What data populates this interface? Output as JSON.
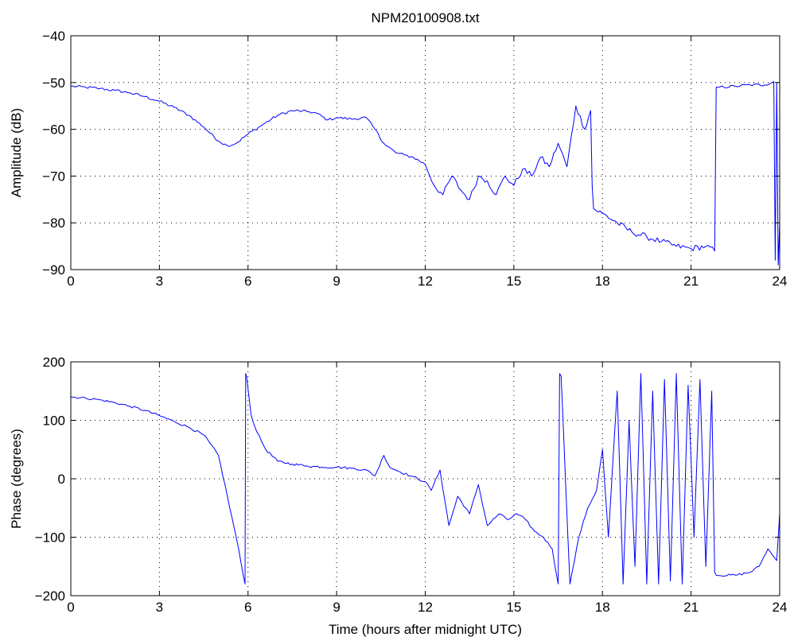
{
  "chart_data": [
    {
      "type": "line",
      "title": "NPM20100908.txt",
      "xlabel": "",
      "ylabel": "Amplitude (dB)",
      "xlim": [
        0,
        24
      ],
      "ylim": [
        -90,
        -40
      ],
      "xticks": [
        0,
        3,
        6,
        9,
        12,
        15,
        18,
        21,
        24
      ],
      "yticks": [
        -90,
        -80,
        -70,
        -60,
        -50,
        -40
      ],
      "grid": true,
      "color": "#0000ff",
      "series": [
        {
          "x": [
            0,
            0.5,
            1,
            1.5,
            2,
            2.5,
            3,
            3.5,
            4,
            4.5,
            5,
            5.3,
            5.6,
            6,
            6.5,
            7,
            7.5,
            8,
            8.3,
            8.7,
            9,
            9.5,
            10,
            10.3,
            10.6,
            11,
            11.3,
            11.6,
            12,
            12.3,
            12.6,
            12.9,
            13.2,
            13.5,
            13.8,
            14.1,
            14.4,
            14.7,
            15,
            15.3,
            15.6,
            15.9,
            16.2,
            16.5,
            16.8,
            17.1,
            17.4,
            17.6,
            17.65,
            17.7,
            18,
            18.5,
            19,
            19.5,
            20,
            20.5,
            21,
            21.5,
            21.8,
            21.85,
            21.9,
            22.5,
            23,
            23.5,
            23.8,
            23.85,
            23.9,
            23.95,
            24
          ],
          "y": [
            -50.8,
            -51,
            -51.3,
            -51.7,
            -52.2,
            -53,
            -54,
            -55.3,
            -57,
            -59.5,
            -62.5,
            -63.5,
            -63,
            -61,
            -59,
            -57,
            -56,
            -56.2,
            -56.5,
            -58,
            -57.5,
            -57.8,
            -57.5,
            -60,
            -63,
            -65,
            -65.5,
            -66,
            -67.5,
            -72,
            -74,
            -70,
            -73,
            -75,
            -70,
            -71,
            -74,
            -70,
            -72,
            -68.5,
            -70,
            -66,
            -68,
            -63,
            -68,
            -55,
            -60,
            -56,
            -72,
            -77,
            -78,
            -80,
            -82,
            -83,
            -84,
            -85,
            -85.5,
            -85,
            -86,
            -51,
            -51,
            -50.8,
            -50.5,
            -50.5,
            -49.8,
            -88,
            -50,
            -89,
            -80
          ]
        }
      ]
    },
    {
      "type": "line",
      "title": "",
      "xlabel": "Time (hours after midnight UTC)",
      "ylabel": "Phase (degrees)",
      "xlim": [
        0,
        24
      ],
      "ylim": [
        -200,
        200
      ],
      "xticks": [
        0,
        3,
        6,
        9,
        12,
        15,
        18,
        21,
        24
      ],
      "yticks": [
        -200,
        -100,
        0,
        100,
        200
      ],
      "grid": true,
      "color": "#0000ff",
      "series": [
        {
          "x": [
            0,
            0.5,
            1,
            1.5,
            2,
            2.5,
            3,
            3.5,
            4,
            4.5,
            5,
            5.3,
            5.6,
            5.9,
            5.92,
            5.95,
            6.1,
            6.3,
            6.6,
            7,
            7.5,
            8,
            8.5,
            9,
            9.5,
            10,
            10.3,
            10.6,
            10.8,
            11,
            11.5,
            12,
            12.2,
            12.5,
            12.8,
            13.1,
            13.5,
            13.8,
            14.1,
            14.5,
            14.8,
            15.1,
            15.4,
            15.7,
            16,
            16.3,
            16.5,
            16.55,
            16.6,
            16.9,
            17.2,
            17.5,
            17.8,
            18,
            18.2,
            18.5,
            18.7,
            18.9,
            19.1,
            19.3,
            19.5,
            19.7,
            19.9,
            20.1,
            20.3,
            20.5,
            20.7,
            20.9,
            21.1,
            21.3,
            21.5,
            21.7,
            21.8,
            21.85,
            22.5,
            23,
            23.3,
            23.6,
            23.9,
            24
          ],
          "y": [
            140,
            138,
            135,
            130,
            124,
            117,
            108,
            98,
            88,
            75,
            40,
            -30,
            -100,
            -180,
            180,
            175,
            110,
            80,
            50,
            30,
            25,
            22,
            20,
            20,
            18,
            15,
            5,
            40,
            20,
            15,
            5,
            -5,
            -20,
            15,
            -80,
            -30,
            -60,
            -10,
            -80,
            -60,
            -70,
            -60,
            -70,
            -90,
            -100,
            -120,
            -180,
            180,
            175,
            -180,
            -100,
            -50,
            -20,
            50,
            -100,
            150,
            -180,
            100,
            -150,
            180,
            -180,
            150,
            -180,
            170,
            -175,
            180,
            -180,
            160,
            -100,
            170,
            -150,
            150,
            -160,
            -165,
            -165,
            -160,
            -150,
            -120,
            -140,
            -60
          ]
        }
      ]
    }
  ]
}
